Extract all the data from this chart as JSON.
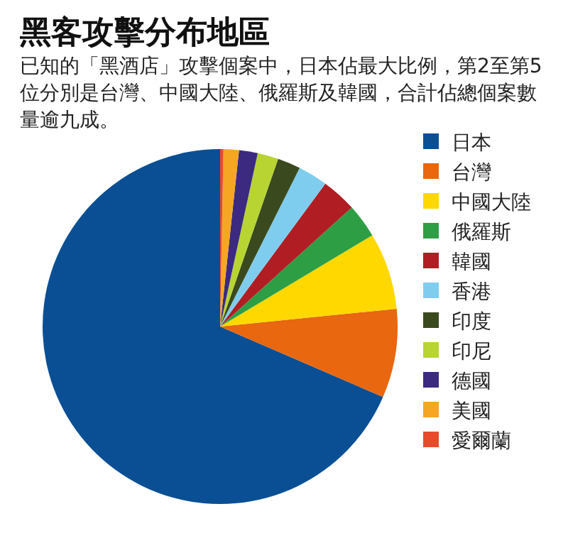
{
  "chart_data": {
    "type": "pie",
    "title": "黑客攻擊分布地區",
    "subtitle": "已知的「黑酒店」攻擊個案中，日本佔最大比例，第2至第5位分別是台灣、中國大陸、俄羅斯及韓國，合計佔總個案數量逾九成。",
    "categories": [
      "日本",
      "台灣",
      "中國大陸",
      "俄羅斯",
      "韓國",
      "香港",
      "印度",
      "印尼",
      "德國",
      "美國",
      "愛爾蘭"
    ],
    "values": [
      68.5,
      8.1,
      7.0,
      3.1,
      3.2,
      2.7,
      2.1,
      1.9,
      1.7,
      1.4,
      0.3
    ],
    "colors": [
      "#0a4f94",
      "#e8670f",
      "#ffd800",
      "#2e9e45",
      "#b01e23",
      "#7fcdee",
      "#3a4a1e",
      "#b8d432",
      "#3c2a80",
      "#f5a623",
      "#e84b2a"
    ],
    "legend": "right"
  }
}
